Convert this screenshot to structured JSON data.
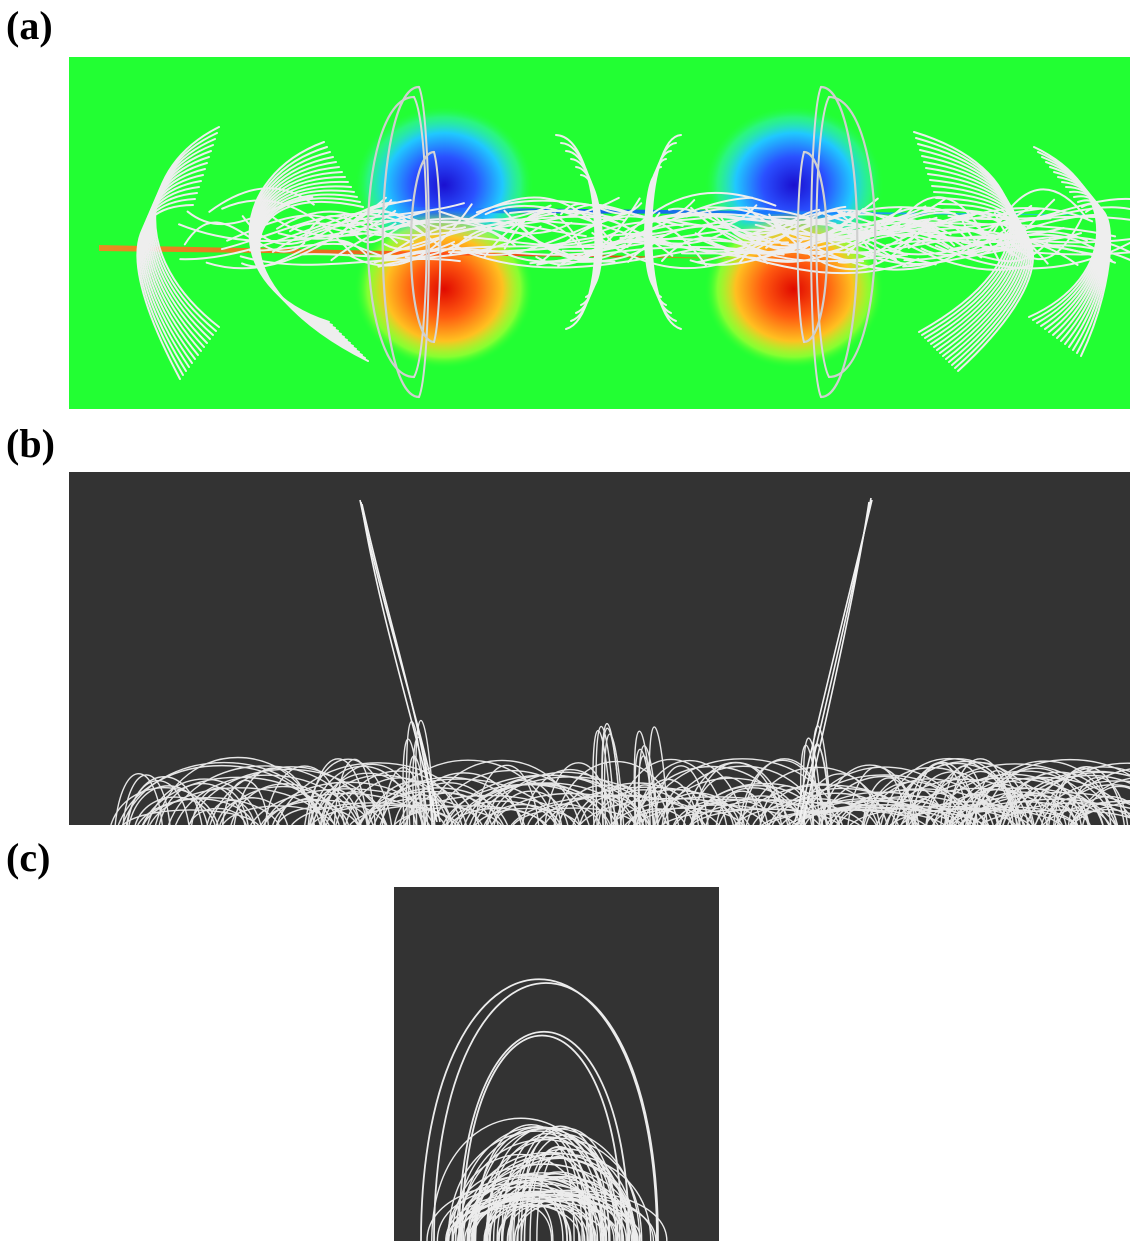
{
  "labels": {
    "a": "(a)",
    "b": "(b)",
    "c": "(c)"
  },
  "colors": {
    "background": "#ffffff",
    "field_background": "#22ff33",
    "negative_pole": "#1a10d0",
    "positive_pole": "#ff2a10",
    "dark_panel": "#333333",
    "field_line": "#e8e8e8"
  },
  "panels": {
    "a": {
      "description_name": "top-view-field-lines-on-magnetogram"
    },
    "b": {
      "description_name": "side-view-field-lines"
    },
    "c": {
      "description_name": "end-view-field-lines"
    }
  }
}
